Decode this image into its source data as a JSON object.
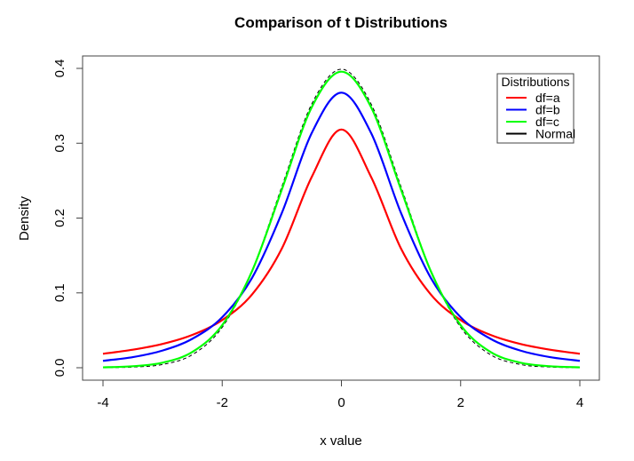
{
  "chart_data": {
    "type": "line",
    "title": "Comparison of t Distributions",
    "xlabel": "x value",
    "ylabel": "Density",
    "xlim": [
      -4,
      4
    ],
    "ylim": [
      0,
      0.4
    ],
    "x_ticks": [
      "-4",
      "-2",
      "0",
      "2",
      "4"
    ],
    "y_ticks": [
      "0.0",
      "0.1",
      "0.2",
      "0.3",
      "0.4"
    ],
    "grid": false,
    "legend": {
      "title": "Distributions",
      "placement": "top-right"
    },
    "x": [
      -4,
      -3.5,
      -3,
      -2.5,
      -2,
      -1.5,
      -1,
      -0.5,
      0,
      0.5,
      1,
      1.5,
      2,
      2.5,
      3,
      3.5,
      4
    ],
    "series": [
      {
        "name": "df=a",
        "color": "#ff0000",
        "dash": false,
        "values": [
          0.0187,
          0.0241,
          0.0318,
          0.0439,
          0.0637,
          0.0979,
          0.1592,
          0.2546,
          0.3183,
          0.2546,
          0.1592,
          0.0979,
          0.0637,
          0.0439,
          0.0318,
          0.0241,
          0.0187
        ]
      },
      {
        "name": "df=b",
        "color": "#0000ff",
        "dash": false,
        "values": [
          0.0092,
          0.0142,
          0.023,
          0.0387,
          0.0675,
          0.12,
          0.2067,
          0.3133,
          0.3676,
          0.3133,
          0.2067,
          0.12,
          0.0675,
          0.0387,
          0.023,
          0.0142,
          0.0092
        ]
      },
      {
        "name": "df=c",
        "color": "#00ff00",
        "dash": false,
        "values": [
          0.0005,
          0.002,
          0.0068,
          0.0211,
          0.0569,
          0.129,
          0.238,
          0.3478,
          0.3956,
          0.3478,
          0.238,
          0.129,
          0.0569,
          0.0211,
          0.0068,
          0.002,
          0.0005
        ]
      },
      {
        "name": "Normal",
        "color": "#000000",
        "dash": true,
        "values": [
          0.0001,
          0.0009,
          0.0044,
          0.0175,
          0.054,
          0.1295,
          0.242,
          0.3521,
          0.3989,
          0.3521,
          0.242,
          0.1295,
          0.054,
          0.0175,
          0.0044,
          0.0009,
          0.0001
        ]
      }
    ]
  }
}
